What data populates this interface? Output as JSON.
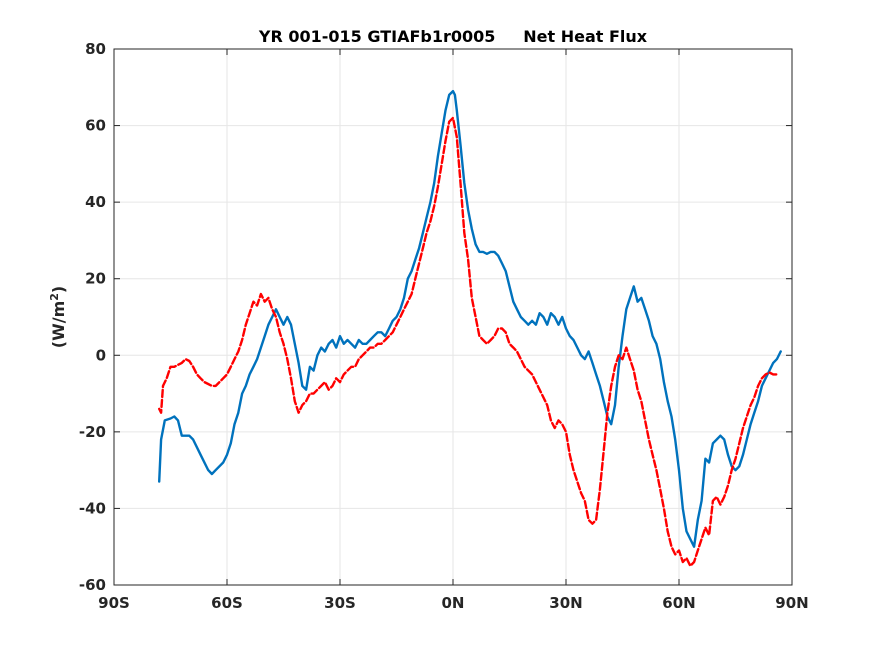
{
  "chart_data": {
    "type": "line",
    "title": "YR 001-015 GTIAFb1r0005     Net Heat Flux",
    "xlabel": "",
    "ylabel": "(W/m",
    "ylabel_sup": "2",
    "ylabel_end": ")",
    "xlim": [
      -90,
      90
    ],
    "ylim": [
      -60,
      80
    ],
    "grid": true,
    "x_ticks": [
      -90,
      -60,
      -30,
      0,
      30,
      60,
      90
    ],
    "x_tick_labels": [
      "90S",
      "60S",
      "30S",
      "0N",
      "30N",
      "60N",
      "90N"
    ],
    "y_ticks": [
      -60,
      -40,
      -20,
      0,
      20,
      40,
      60,
      80
    ],
    "y_tick_labels": [
      "-60",
      "-40",
      "-20",
      "0",
      "20",
      "40",
      "60",
      "80"
    ],
    "series": [
      {
        "color": "#0072BD",
        "style": "solid",
        "points": [
          [
            -78,
            -33
          ],
          [
            -77.5,
            -22
          ],
          [
            -76.5,
            -17
          ],
          [
            -75,
            -16.5
          ],
          [
            -74,
            -16
          ],
          [
            -73,
            -17
          ],
          [
            -72,
            -21
          ],
          [
            -70,
            -21
          ],
          [
            -69,
            -22
          ],
          [
            -67,
            -26
          ],
          [
            -65,
            -30
          ],
          [
            -64,
            -31
          ],
          [
            -63,
            -30
          ],
          [
            -61,
            -28
          ],
          [
            -60,
            -26
          ],
          [
            -59,
            -23
          ],
          [
            -58,
            -18
          ],
          [
            -57,
            -15
          ],
          [
            -56,
            -10
          ],
          [
            -55,
            -8
          ],
          [
            -54,
            -5
          ],
          [
            -53,
            -3
          ],
          [
            -52,
            -1
          ],
          [
            -51,
            2
          ],
          [
            -50,
            5
          ],
          [
            -49,
            8
          ],
          [
            -48,
            10
          ],
          [
            -47,
            12
          ],
          [
            -46,
            10
          ],
          [
            -45,
            8
          ],
          [
            -44,
            10
          ],
          [
            -43,
            8
          ],
          [
            -42,
            3
          ],
          [
            -41,
            -2
          ],
          [
            -40,
            -8
          ],
          [
            -39,
            -9
          ],
          [
            -38,
            -3
          ],
          [
            -37,
            -4
          ],
          [
            -36,
            0
          ],
          [
            -35,
            2
          ],
          [
            -34,
            1
          ],
          [
            -33,
            3
          ],
          [
            -32,
            4
          ],
          [
            -31,
            2
          ],
          [
            -30,
            5
          ],
          [
            -29,
            3
          ],
          [
            -28,
            4
          ],
          [
            -27,
            3
          ],
          [
            -26,
            2
          ],
          [
            -25,
            4
          ],
          [
            -24,
            3
          ],
          [
            -23,
            3
          ],
          [
            -22,
            4
          ],
          [
            -21,
            5
          ],
          [
            -20,
            6
          ],
          [
            -19,
            6
          ],
          [
            -18,
            5
          ],
          [
            -17,
            7
          ],
          [
            -16,
            9
          ],
          [
            -15,
            10
          ],
          [
            -14,
            12
          ],
          [
            -13,
            15
          ],
          [
            -12,
            20
          ],
          [
            -11,
            22
          ],
          [
            -10,
            25
          ],
          [
            -9,
            28
          ],
          [
            -8,
            32
          ],
          [
            -7,
            36
          ],
          [
            -6,
            40
          ],
          [
            -5,
            45
          ],
          [
            -4,
            52
          ],
          [
            -3,
            58
          ],
          [
            -2,
            64
          ],
          [
            -1,
            68
          ],
          [
            0,
            69
          ],
          [
            0.5,
            68
          ],
          [
            1,
            64
          ],
          [
            2,
            55
          ],
          [
            3,
            45
          ],
          [
            4,
            38
          ],
          [
            5,
            33
          ],
          [
            6,
            29
          ],
          [
            7,
            27
          ],
          [
            8,
            27
          ],
          [
            9,
            26.5
          ],
          [
            10,
            27
          ],
          [
            11,
            27
          ],
          [
            12,
            26
          ],
          [
            13,
            24
          ],
          [
            14,
            22
          ],
          [
            15,
            18
          ],
          [
            16,
            14
          ],
          [
            17,
            12
          ],
          [
            18,
            10
          ],
          [
            19,
            9
          ],
          [
            20,
            8
          ],
          [
            21,
            9
          ],
          [
            22,
            8
          ],
          [
            23,
            11
          ],
          [
            24,
            10
          ],
          [
            25,
            8
          ],
          [
            26,
            11
          ],
          [
            27,
            10
          ],
          [
            28,
            8
          ],
          [
            29,
            10
          ],
          [
            30,
            7
          ],
          [
            31,
            5
          ],
          [
            32,
            4
          ],
          [
            33,
            2
          ],
          [
            34,
            0
          ],
          [
            35,
            -1
          ],
          [
            36,
            1
          ],
          [
            37,
            -2
          ],
          [
            38,
            -5
          ],
          [
            39,
            -8
          ],
          [
            40,
            -12
          ],
          [
            41,
            -16
          ],
          [
            42,
            -18
          ],
          [
            43,
            -13
          ],
          [
            44,
            -3
          ],
          [
            45,
            5
          ],
          [
            46,
            12
          ],
          [
            47,
            15
          ],
          [
            48,
            18
          ],
          [
            49,
            14
          ],
          [
            50,
            15
          ],
          [
            51,
            12
          ],
          [
            52,
            9
          ],
          [
            53,
            5
          ],
          [
            54,
            3
          ],
          [
            55,
            -1
          ],
          [
            56,
            -7
          ],
          [
            57,
            -12
          ],
          [
            58,
            -16
          ],
          [
            59,
            -22
          ],
          [
            60,
            -30
          ],
          [
            61,
            -40
          ],
          [
            62,
            -46
          ],
          [
            63,
            -48
          ],
          [
            64,
            -50
          ],
          [
            65,
            -43
          ],
          [
            66,
            -38
          ],
          [
            67,
            -27
          ],
          [
            68,
            -28
          ],
          [
            69,
            -23
          ],
          [
            70,
            -22
          ],
          [
            71,
            -21
          ],
          [
            72,
            -22
          ],
          [
            73,
            -26
          ],
          [
            74,
            -29
          ],
          [
            75,
            -30
          ],
          [
            76,
            -29
          ],
          [
            77,
            -26
          ],
          [
            78,
            -22
          ],
          [
            79,
            -18
          ],
          [
            80,
            -15
          ],
          [
            81,
            -12
          ],
          [
            82,
            -8
          ],
          [
            83,
            -6
          ],
          [
            84,
            -4
          ],
          [
            85,
            -2
          ],
          [
            86,
            -1
          ],
          [
            87,
            1
          ]
        ]
      },
      {
        "color": "#FF0000",
        "style": "dashed",
        "points": [
          [
            -78,
            -14
          ],
          [
            -77.5,
            -15
          ],
          [
            -77,
            -8
          ],
          [
            -76,
            -6
          ],
          [
            -75,
            -3
          ],
          [
            -74,
            -3
          ],
          [
            -73,
            -2.5
          ],
          [
            -72,
            -2
          ],
          [
            -71,
            -1
          ],
          [
            -70,
            -1.5
          ],
          [
            -69,
            -3
          ],
          [
            -68,
            -5
          ],
          [
            -67,
            -6
          ],
          [
            -66,
            -7
          ],
          [
            -65,
            -7.5
          ],
          [
            -64,
            -8
          ],
          [
            -63,
            -8
          ],
          [
            -62,
            -7
          ],
          [
            -61,
            -6
          ],
          [
            -60,
            -5
          ],
          [
            -59,
            -3
          ],
          [
            -58,
            -1
          ],
          [
            -57,
            1
          ],
          [
            -56,
            4
          ],
          [
            -55,
            8
          ],
          [
            -54,
            11
          ],
          [
            -53,
            14
          ],
          [
            -52,
            13
          ],
          [
            -51,
            16
          ],
          [
            -50,
            14
          ],
          [
            -49,
            15
          ],
          [
            -48,
            12
          ],
          [
            -47,
            10
          ],
          [
            -46,
            6
          ],
          [
            -45,
            3
          ],
          [
            -44,
            -1
          ],
          [
            -43,
            -6
          ],
          [
            -42,
            -12
          ],
          [
            -41,
            -15
          ],
          [
            -40,
            -13
          ],
          [
            -39,
            -12
          ],
          [
            -38,
            -10
          ],
          [
            -37,
            -10
          ],
          [
            -36,
            -9
          ],
          [
            -35,
            -8
          ],
          [
            -34,
            -7
          ],
          [
            -33,
            -9
          ],
          [
            -32,
            -8
          ],
          [
            -31,
            -6
          ],
          [
            -30,
            -7
          ],
          [
            -29,
            -5
          ],
          [
            -28,
            -4
          ],
          [
            -27,
            -3
          ],
          [
            -26,
            -3
          ],
          [
            -25,
            -1
          ],
          [
            -24,
            0
          ],
          [
            -23,
            1
          ],
          [
            -22,
            2
          ],
          [
            -21,
            2
          ],
          [
            -20,
            3
          ],
          [
            -19,
            3
          ],
          [
            -18,
            4
          ],
          [
            -17,
            5
          ],
          [
            -16,
            6
          ],
          [
            -15,
            8
          ],
          [
            -14,
            10
          ],
          [
            -13,
            12
          ],
          [
            -12,
            14
          ],
          [
            -11,
            16
          ],
          [
            -10,
            20
          ],
          [
            -9,
            24
          ],
          [
            -8,
            28
          ],
          [
            -7,
            32
          ],
          [
            -6,
            35
          ],
          [
            -5,
            39
          ],
          [
            -4,
            44
          ],
          [
            -3,
            50
          ],
          [
            -2,
            56
          ],
          [
            -1,
            61
          ],
          [
            0,
            62
          ],
          [
            1,
            57
          ],
          [
            2,
            45
          ],
          [
            3,
            32
          ],
          [
            4,
            25
          ],
          [
            5,
            15
          ],
          [
            6,
            10
          ],
          [
            7,
            5
          ],
          [
            8,
            4
          ],
          [
            9,
            3
          ],
          [
            10,
            4
          ],
          [
            11,
            5
          ],
          [
            12,
            7
          ],
          [
            13,
            7
          ],
          [
            14,
            6
          ],
          [
            15,
            3
          ],
          [
            16,
            2
          ],
          [
            17,
            1
          ],
          [
            18,
            -1
          ],
          [
            19,
            -3
          ],
          [
            20,
            -4
          ],
          [
            21,
            -5
          ],
          [
            22,
            -7
          ],
          [
            23,
            -9
          ],
          [
            24,
            -11
          ],
          [
            25,
            -13
          ],
          [
            26,
            -17
          ],
          [
            27,
            -19
          ],
          [
            28,
            -17
          ],
          [
            29,
            -18
          ],
          [
            30,
            -20
          ],
          [
            31,
            -26
          ],
          [
            32,
            -30
          ],
          [
            33,
            -33
          ],
          [
            34,
            -36
          ],
          [
            35,
            -38
          ],
          [
            36,
            -43
          ],
          [
            37,
            -44
          ],
          [
            38,
            -43
          ],
          [
            39,
            -35
          ],
          [
            40,
            -25
          ],
          [
            41,
            -15
          ],
          [
            42,
            -8
          ],
          [
            43,
            -3
          ],
          [
            44,
            0
          ],
          [
            45,
            -1
          ],
          [
            46,
            2
          ],
          [
            47,
            -1
          ],
          [
            48,
            -4
          ],
          [
            49,
            -9
          ],
          [
            50,
            -12
          ],
          [
            51,
            -17
          ],
          [
            52,
            -22
          ],
          [
            53,
            -26
          ],
          [
            54,
            -30
          ],
          [
            55,
            -35
          ],
          [
            56,
            -40
          ],
          [
            57,
            -46
          ],
          [
            58,
            -50
          ],
          [
            59,
            -52
          ],
          [
            60,
            -51
          ],
          [
            61,
            -54
          ],
          [
            62,
            -53
          ],
          [
            63,
            -55
          ],
          [
            64,
            -54
          ],
          [
            65,
            -51
          ],
          [
            66,
            -48
          ],
          [
            67,
            -45
          ],
          [
            68,
            -47
          ],
          [
            69,
            -38
          ],
          [
            70,
            -37
          ],
          [
            71,
            -39
          ],
          [
            72,
            -37
          ],
          [
            73,
            -34
          ],
          [
            74,
            -30
          ],
          [
            75,
            -27
          ],
          [
            76,
            -23
          ],
          [
            77,
            -19
          ],
          [
            78,
            -16
          ],
          [
            79,
            -13
          ],
          [
            80,
            -11
          ],
          [
            81,
            -8
          ],
          [
            82,
            -6
          ],
          [
            83,
            -5
          ],
          [
            84,
            -4.5
          ],
          [
            85,
            -5
          ],
          [
            86,
            -5
          ]
        ]
      }
    ]
  }
}
